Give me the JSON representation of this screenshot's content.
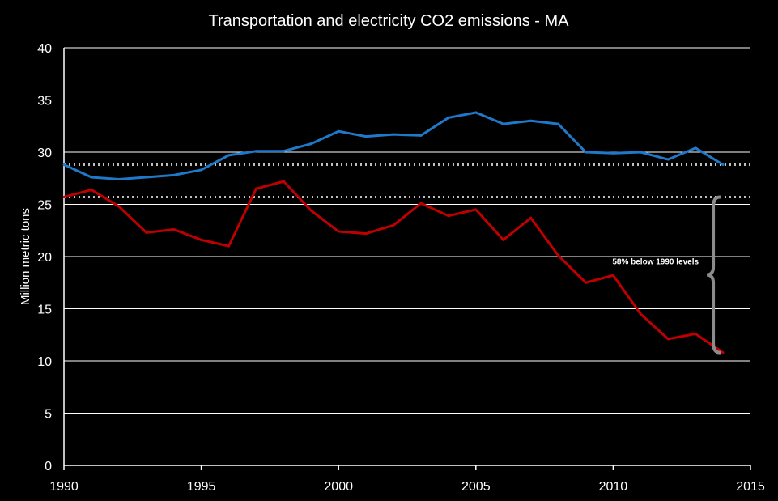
{
  "chart_data": {
    "type": "line",
    "title": "Transportation and electricity CO2 emissions - MA",
    "xlabel": "",
    "ylabel": "Million metric tons",
    "xlim": [
      1990,
      2015
    ],
    "ylim": [
      0,
      40
    ],
    "x_ticks": [
      "1990",
      "1995",
      "2000",
      "2005",
      "2010",
      "2015"
    ],
    "y_ticks": [
      "0",
      "5",
      "10",
      "15",
      "20",
      "25",
      "30",
      "35",
      "40"
    ],
    "grid": true,
    "x": [
      1990,
      1991,
      1992,
      1993,
      1994,
      1995,
      1996,
      1997,
      1998,
      1999,
      2000,
      2001,
      2002,
      2003,
      2004,
      2005,
      2006,
      2007,
      2008,
      2009,
      2010,
      2011,
      2012,
      2013,
      2014
    ],
    "series": [
      {
        "color": "#1f78c8",
        "values": [
          28.8,
          27.6,
          27.4,
          27.6,
          27.8,
          28.3,
          29.7,
          30.1,
          30.1,
          30.8,
          32.0,
          31.5,
          31.7,
          31.6,
          33.3,
          33.8,
          32.7,
          33.0,
          32.7,
          30.0,
          29.9,
          30.0,
          29.3,
          30.4,
          28.8
        ]
      },
      {
        "color": "#c00000",
        "values": [
          25.7,
          26.4,
          24.8,
          22.3,
          22.6,
          21.6,
          21.0,
          26.5,
          27.2,
          24.4,
          22.4,
          22.2,
          23.0,
          25.1,
          23.9,
          24.5,
          21.6,
          23.7,
          20.1,
          17.5,
          18.2,
          14.5,
          12.1,
          12.6,
          10.8
        ]
      }
    ],
    "reference_lines": [
      28.8,
      25.7
    ],
    "annotation": {
      "text": "58% below 1990 levels",
      "x": 2014,
      "y_top": 25.7,
      "y_bottom": 10.8
    }
  }
}
